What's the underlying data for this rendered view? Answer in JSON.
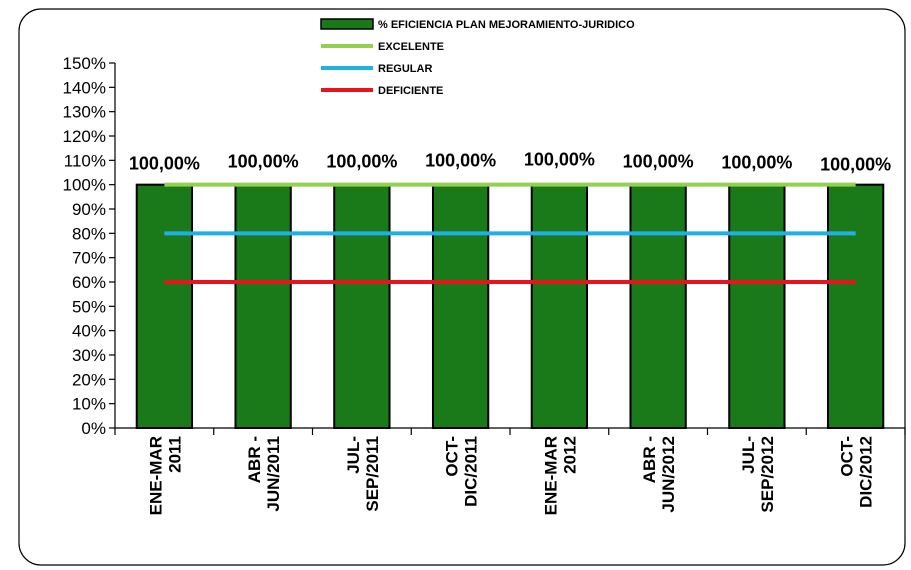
{
  "chart_data": {
    "type": "bar",
    "categories": [
      [
        "ENE-MAR",
        "2011"
      ],
      [
        "ABR -",
        "JUN/2011"
      ],
      [
        "JUL-",
        "SEP/2011"
      ],
      [
        "OCT-",
        "DIC/2011"
      ],
      [
        "ENE-MAR",
        "2012"
      ],
      [
        "ABR -",
        "JUN/2012"
      ],
      [
        "JUL-",
        "SEP/2012"
      ],
      [
        "OCT-",
        "DIC/2012"
      ]
    ],
    "series": [
      {
        "name": "% EFICIENCIA PLAN MEJORAMIENTO-JURIDICO",
        "type": "bar",
        "color": "#1a7a1a",
        "values": [
          100,
          100,
          100,
          100,
          100,
          100,
          100,
          100
        ]
      },
      {
        "name": "EXCELENTE",
        "type": "line",
        "color": "#92d050",
        "values": [
          100,
          100,
          100,
          100,
          100,
          100,
          100,
          100
        ]
      },
      {
        "name": "REGULAR",
        "type": "line",
        "color": "#1fb0e8",
        "values": [
          80,
          80,
          80,
          80,
          80,
          80,
          80,
          80
        ]
      },
      {
        "name": "DEFICIENTE",
        "type": "line",
        "color": "#e8141c",
        "values": [
          60,
          60,
          60,
          60,
          60,
          60,
          60,
          60
        ]
      }
    ],
    "data_labels": [
      "100,00%",
      "100,00%",
      "100,00%",
      "100,00%",
      "100,00%",
      "100,00%",
      "100,00%",
      "100,00%"
    ],
    "y_ticks": [
      "0%",
      "10%",
      "20%",
      "30%",
      "40%",
      "50%",
      "60%",
      "70%",
      "80%",
      "90%",
      "100%",
      "110%",
      "120%",
      "130%",
      "140%",
      "150%"
    ],
    "ylim": [
      0,
      150
    ],
    "grid": false,
    "legend_position": "top-center",
    "title": "",
    "xlabel": "",
    "ylabel": ""
  }
}
